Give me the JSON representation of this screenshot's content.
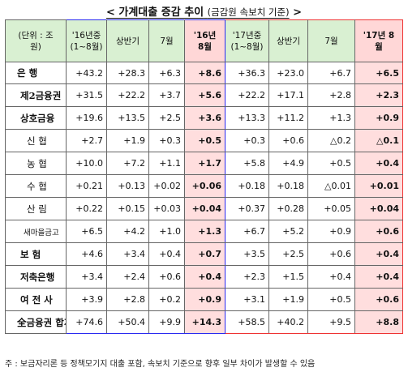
{
  "title": {
    "main": "< 가계대출 증감 추이",
    "sub": "(금감원 속보치 기준)",
    "close": ">"
  },
  "header": {
    "unit": "(단위 : 조원)",
    "y16_period": "'16년중 (1~8월)",
    "y16_h1": "상반기",
    "y16_jul": "7월",
    "y16_aug": "'16년 8월",
    "y17_period": "'17년중 (1~8월)",
    "y17_h1": "상반기",
    "y17_jul": "7월",
    "y17_aug": "'17년 8월"
  },
  "rows": [
    {
      "label": "은   행",
      "values": [
        "+43.2",
        "+28.3",
        "+6.3",
        "+8.6",
        "+36.3",
        "+23.0",
        "+6.7",
        "+6.5"
      ]
    },
    {
      "label": "제2금융권",
      "values": [
        "+31.5",
        "+22.2",
        "+3.7",
        "+5.6",
        "+22.2",
        "+17.1",
        "+2.8",
        "+2.3"
      ]
    },
    {
      "label": "상호금융",
      "values": [
        "+19.6",
        "+13.5",
        "+2.5",
        "+3.6",
        "+13.3",
        "+11.2",
        "+1.3",
        "+0.9"
      ]
    },
    {
      "label": "신   협",
      "values": [
        "+2.7",
        "+1.9",
        "+0.3",
        "+0.5",
        "+0.3",
        "+0.6",
        "△0.2",
        "△0.1"
      ]
    },
    {
      "label": "농   협",
      "values": [
        "+10.0",
        "+7.2",
        "+1.1",
        "+1.7",
        "+5.8",
        "+4.9",
        "+0.5",
        "+0.4"
      ]
    },
    {
      "label": "수   협",
      "values": [
        "+0.21",
        "+0.13",
        "+0.02",
        "+0.06",
        "+0.18",
        "+0.18",
        "△0.01",
        "+0.01"
      ]
    },
    {
      "label": "산   림",
      "values": [
        "+0.22",
        "+0.15",
        "+0.03",
        "+0.04",
        "+0.37",
        "+0.28",
        "+0.05",
        "+0.04"
      ]
    },
    {
      "label": "새마을금고",
      "values": [
        "+6.5",
        "+4.2",
        "+1.0",
        "+1.3",
        "+6.7",
        "+5.2",
        "+0.9",
        "+0.6"
      ]
    },
    {
      "label": "보   험",
      "values": [
        "+4.6",
        "+3.4",
        "+0.4",
        "+0.7",
        "+3.5",
        "+2.5",
        "+0.6",
        "+0.4"
      ]
    },
    {
      "label": "저축은행",
      "values": [
        "+3.4",
        "+2.4",
        "+0.6",
        "+0.4",
        "+2.3",
        "+1.5",
        "+0.4",
        "+0.4"
      ]
    },
    {
      "label": "여 전 사",
      "values": [
        "+3.9",
        "+2.8",
        "+0.2",
        "+0.9",
        "+3.1",
        "+1.9",
        "+0.5",
        "+0.6"
      ]
    },
    {
      "label": "全금융권 합계",
      "values": [
        "+74.6",
        "+50.4",
        "+9.9",
        "+14.3",
        "+58.5",
        "+40.2",
        "+9.5",
        "+8.8"
      ]
    }
  ],
  "footnote": "주 : 보금자리론 등 정책모기지 대출 포함, 속보치 기준으로 향후 일부 차이가 발생할 수 있음",
  "colors": {
    "header_bg": "#d9f0d2",
    "highlight_bg": "#ffdede",
    "blue_border": "#2a2af0",
    "red_border": "#e33"
  }
}
